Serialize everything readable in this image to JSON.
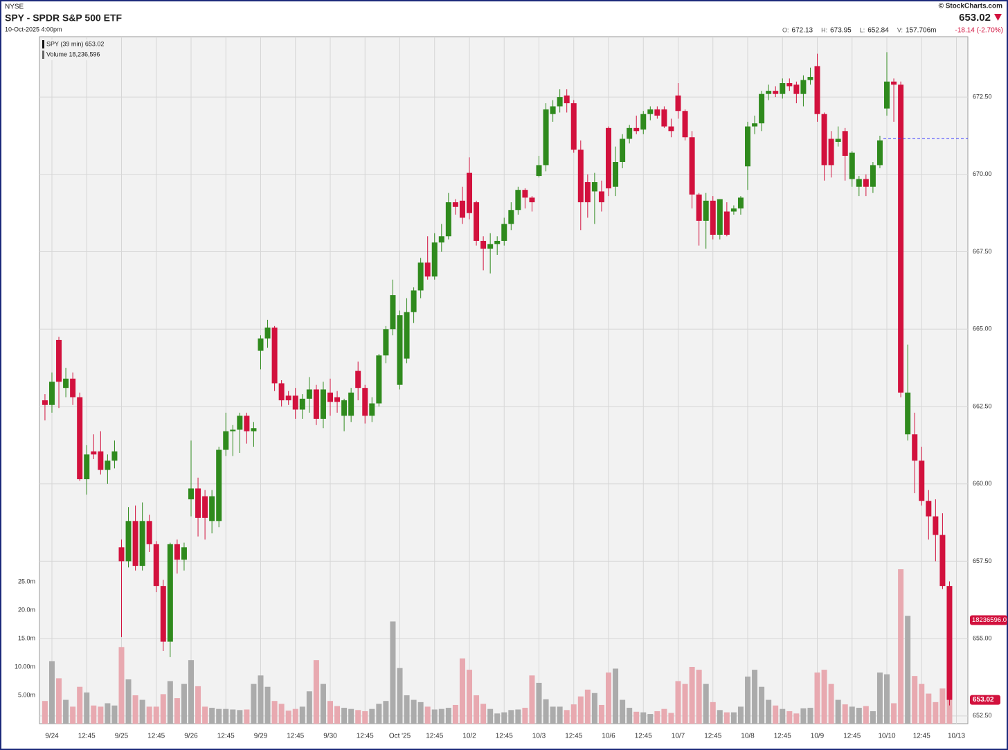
{
  "header": {
    "exchange": "NYSE",
    "title": "SPY - SPDR S&P 500 ETF",
    "datetime": "10-Oct-2025 4:00pm",
    "brand": "© StockCharts.com",
    "last": "653.02",
    "stats": [
      {
        "key": "O:",
        "value": "672.13"
      },
      {
        "key": "H:",
        "value": "673.95"
      },
      {
        "key": "L:",
        "value": "652.84"
      },
      {
        "key": "V:",
        "value": "157.706m"
      }
    ],
    "change": "-18.14 (-2.70%)"
  },
  "chart_data": {
    "type": "candlestick",
    "legend": [
      "SPY (39 min) 653.02",
      "Volume 18,236,596"
    ],
    "up_color": "#2f8a1d",
    "down_color": "#d2113d",
    "up_volume_color": "#ababab",
    "down_volume_color": "#e8a9b0",
    "prev_close": 671.16,
    "prev_close_color": "#3a3aff",
    "last_price_label": "653.02",
    "last_volume_label": "18236596.0",
    "xlim": [
      -0.79,
      132.64
    ],
    "xticks": [
      {
        "value": 1,
        "label": "9/24"
      },
      {
        "value": 6,
        "label": "12:45"
      },
      {
        "value": 11,
        "label": "9/25"
      },
      {
        "value": 16,
        "label": "12:45"
      },
      {
        "value": 21,
        "label": "9/26"
      },
      {
        "value": 26,
        "label": "12:45"
      },
      {
        "value": 31,
        "label": "9/29"
      },
      {
        "value": 36,
        "label": "12:45"
      },
      {
        "value": 41,
        "label": "9/30"
      },
      {
        "value": 46,
        "label": "12:45"
      },
      {
        "value": 51,
        "label": "Oct '25"
      },
      {
        "value": 56,
        "label": "12:45"
      },
      {
        "value": 61,
        "label": "10/2"
      },
      {
        "value": 66,
        "label": "12:45"
      },
      {
        "value": 71,
        "label": "10/3"
      },
      {
        "value": 76,
        "label": "12:45"
      },
      {
        "value": 81,
        "label": "10/6"
      },
      {
        "value": 86,
        "label": "12:45"
      },
      {
        "value": 91,
        "label": "10/7"
      },
      {
        "value": 96,
        "label": "12:45"
      },
      {
        "value": 101,
        "label": "10/8"
      },
      {
        "value": 106,
        "label": "12:45"
      },
      {
        "value": 111,
        "label": "10/9"
      },
      {
        "value": 116,
        "label": "12:45"
      },
      {
        "value": 121,
        "label": "10/10"
      },
      {
        "value": 126,
        "label": "12:45"
      },
      {
        "value": 131,
        "label": "10/13"
      }
    ],
    "ylim": [
      652.25,
      674.45
    ],
    "yticks": [
      {
        "value": 652.5,
        "label": "652.50"
      },
      {
        "value": 655,
        "label": "655.00"
      },
      {
        "value": 657.5,
        "label": "657.50"
      },
      {
        "value": 660,
        "label": "660.00"
      },
      {
        "value": 662.5,
        "label": "662.50"
      },
      {
        "value": 665,
        "label": "665.00"
      },
      {
        "value": 667.5,
        "label": "667.50"
      },
      {
        "value": 670,
        "label": "670.00"
      },
      {
        "value": 672.5,
        "label": "672.50"
      }
    ],
    "y2lim": [
      0,
      121
    ],
    "y2ticks": [
      {
        "value": 5,
        "label": "5.00m"
      },
      {
        "value": 10,
        "label": "10.00m"
      },
      {
        "value": 15,
        "label": "15.0m"
      },
      {
        "value": 20,
        "label": "20.0m"
      },
      {
        "value": 25,
        "label": "25.0m"
      }
    ],
    "open": [
      662.7,
      662.55,
      664.65,
      663.1,
      663.4,
      662.8,
      660.15,
      661.05,
      661.05,
      660.45,
      660.75,
      657.95,
      657.5,
      658.8,
      657.35,
      658.8,
      658.05,
      656.7,
      654.9,
      658.05,
      657.55,
      659.5,
      659.85,
      659.6,
      658.8,
      658.8,
      661.1,
      661.7,
      661.75,
      662.2,
      661.7,
      664.3,
      664.7,
      665.05,
      663.25,
      662.85,
      662.85,
      662.4,
      662.75,
      663.05,
      662.1,
      662.95,
      662.8,
      662.2,
      662.2,
      663.65,
      663.1,
      662.2,
      662.6,
      664.15,
      665.0,
      663.2,
      664.05,
      665.55,
      666.25,
      667.15,
      666.7,
      667.8,
      668.0,
      669.1,
      669.15,
      670.05,
      669.1,
      667.85,
      667.6,
      667.75,
      667.85,
      668.4,
      668.85,
      669.5,
      669.25,
      669.95,
      670.3,
      671.95,
      672.2,
      672.55,
      672.3,
      670.8,
      669.75,
      669.45,
      669.45,
      671.5,
      669.6,
      670.4,
      671.15,
      671.5,
      671.45,
      671.95,
      672.1,
      672.1,
      671.55,
      672.55,
      672.05,
      671.2,
      669.35,
      668.5,
      669.15,
      668.05,
      668.8,
      668.8,
      668.9,
      670.26,
      671.55,
      671.65,
      672.6,
      672.7,
      672.6,
      672.95,
      672.9,
      672.6,
      673.05,
      673.5,
      671.95,
      671.15,
      671.05,
      671.4,
      669.85,
      669.6,
      669.85,
      669.6,
      670.3,
      672.13,
      673.0,
      672.9,
      661.6,
      661.6,
      660.75,
      659.45,
      658.95,
      658.35,
      656.7
    ],
    "high": [
      662.9,
      663.6,
      664.75,
      663.75,
      663.6,
      662.95,
      661.25,
      661.6,
      661.7,
      660.95,
      661.4,
      658.2,
      659.25,
      659.3,
      659.4,
      659.0,
      658.15,
      656.9,
      658.1,
      658.2,
      658.1,
      661.4,
      660.2,
      659.8,
      659.8,
      661.2,
      662.3,
      661.9,
      662.3,
      662.3,
      662.0,
      664.8,
      665.3,
      665.1,
      663.35,
      663.0,
      663.1,
      662.9,
      663.45,
      663.2,
      663.3,
      663.4,
      663.0,
      662.75,
      663.1,
      663.95,
      663.2,
      662.8,
      664.2,
      665.1,
      666.6,
      665.6,
      666.0,
      666.35,
      667.3,
      668.0,
      668.1,
      668.4,
      669.4,
      669.2,
      669.6,
      670.55,
      669.15,
      668.0,
      668.1,
      668.0,
      668.6,
      669.1,
      669.6,
      669.55,
      669.3,
      670.6,
      672.3,
      672.4,
      672.75,
      672.75,
      672.4,
      671.1,
      670.0,
      670.05,
      669.8,
      671.55,
      670.9,
      671.3,
      671.6,
      671.9,
      672.05,
      672.2,
      672.2,
      672.2,
      671.8,
      672.95,
      672.1,
      671.4,
      669.4,
      669.4,
      669.3,
      669.2,
      669.1,
      669.0,
      669.3,
      671.7,
      671.9,
      672.7,
      672.9,
      672.85,
      673.1,
      673.1,
      673.0,
      673.2,
      673.45,
      673.9,
      672.0,
      671.4,
      671.55,
      671.5,
      670.75,
      669.95,
      670.0,
      670.4,
      671.25,
      673.95,
      673.1,
      673.0,
      664.5,
      662.3,
      661.2,
      659.8,
      659.5,
      659.05,
      656.85
    ],
    "low": [
      662.05,
      662.3,
      662.45,
      662.8,
      662.55,
      660.1,
      659.65,
      660.8,
      660.3,
      660.0,
      660.5,
      655.05,
      657.3,
      657.2,
      657.2,
      657.8,
      656.5,
      654.6,
      654.4,
      657.1,
      657.2,
      658.95,
      658.3,
      658.2,
      658.4,
      658.6,
      660.9,
      660.9,
      661.0,
      661.3,
      661.2,
      663.7,
      664.4,
      663.0,
      662.5,
      662.55,
      662.1,
      662.1,
      662.3,
      661.9,
      661.8,
      662.2,
      662.3,
      661.7,
      662.0,
      662.7,
      661.95,
      662.0,
      662.5,
      663.9,
      664.8,
      663.05,
      663.9,
      665.2,
      666.0,
      666.6,
      666.6,
      667.5,
      667.9,
      668.7,
      668.4,
      668.55,
      667.7,
      666.9,
      666.8,
      667.4,
      667.7,
      668.2,
      668.7,
      668.9,
      668.8,
      669.9,
      670.1,
      671.7,
      672.0,
      672.0,
      670.7,
      668.2,
      668.6,
      668.4,
      668.8,
      669.3,
      669.3,
      670.2,
      671.0,
      671.3,
      671.3,
      671.75,
      671.8,
      671.5,
      671.2,
      671.8,
      671.1,
      668.9,
      667.7,
      667.6,
      667.9,
      667.9,
      668.0,
      668.7,
      668.7,
      669.5,
      671.3,
      671.4,
      672.4,
      672.5,
      672.45,
      672.7,
      672.3,
      672.2,
      672.9,
      671.7,
      669.8,
      669.9,
      670.9,
      669.8,
      669.6,
      669.3,
      669.3,
      669.4,
      670.2,
      671.9,
      671.7,
      662.8,
      661.4,
      659.7,
      659.3,
      658.2,
      657.5,
      656.6,
      652.84
    ],
    "close": [
      662.55,
      663.3,
      663.3,
      663.4,
      662.8,
      660.15,
      660.95,
      660.95,
      660.45,
      660.75,
      661.05,
      657.5,
      658.8,
      657.35,
      658.8,
      658.05,
      656.7,
      654.9,
      658.05,
      657.55,
      657.95,
      659.85,
      658.9,
      658.9,
      659.6,
      661.1,
      661.7,
      661.75,
      662.2,
      661.7,
      661.8,
      664.7,
      665.05,
      663.25,
      662.7,
      662.7,
      662.4,
      662.75,
      663.05,
      662.1,
      663.05,
      662.65,
      662.65,
      662.7,
      662.95,
      663.1,
      662.2,
      662.6,
      664.15,
      665.0,
      666.1,
      665.45,
      665.55,
      666.25,
      667.15,
      666.7,
      667.8,
      668.0,
      669.1,
      668.95,
      668.6,
      668.75,
      667.85,
      667.6,
      667.75,
      667.85,
      668.4,
      668.85,
      669.5,
      669.25,
      669.1,
      670.3,
      672.1,
      672.2,
      672.5,
      672.3,
      670.8,
      669.1,
      669.1,
      669.75,
      669.1,
      669.55,
      670.4,
      671.15,
      671.5,
      671.4,
      671.95,
      672.1,
      671.9,
      671.55,
      671.4,
      672.05,
      671.2,
      669.35,
      668.5,
      669.15,
      668.05,
      669.2,
      668.05,
      668.9,
      669.25,
      671.55,
      671.65,
      672.6,
      672.7,
      672.6,
      672.95,
      672.85,
      672.6,
      673.05,
      673.15,
      671.95,
      670.3,
      670.3,
      671.15,
      670.6,
      670.7,
      669.85,
      669.6,
      670.3,
      671.1,
      673.0,
      672.9,
      662.95,
      662.95,
      660.75,
      659.45,
      658.95,
      658.35,
      656.7,
      653.02
    ],
    "volume": [
      4.0,
      11.0,
      8.0,
      4.2,
      3.0,
      6.5,
      5.5,
      3.2,
      3.0,
      3.6,
      3.2,
      13.5,
      7.8,
      5.0,
      4.2,
      3.0,
      3.0,
      5.2,
      7.5,
      4.5,
      7.0,
      11.2,
      6.6,
      3.0,
      2.8,
      2.6,
      2.6,
      2.5,
      2.4,
      2.5,
      7.0,
      8.5,
      6.5,
      4.0,
      3.5,
      2.3,
      2.6,
      3.0,
      5.7,
      11.2,
      7.0,
      4.0,
      3.1,
      2.8,
      2.6,
      2.4,
      2.2,
      2.6,
      3.5,
      4.0,
      18.0,
      9.8,
      5.0,
      4.2,
      3.8,
      3.0,
      2.5,
      2.6,
      2.8,
      3.3,
      11.5,
      9.5,
      5.0,
      3.5,
      2.6,
      1.8,
      2.0,
      2.4,
      2.5,
      2.8,
      8.5,
      7.2,
      4.3,
      3.0,
      3.0,
      2.4,
      3.4,
      4.8,
      6.0,
      5.4,
      3.3,
      9.0,
      9.7,
      4.2,
      2.8,
      2.1,
      2.0,
      1.7,
      2.2,
      2.6,
      1.9,
      7.5,
      7.0,
      10.0,
      9.5,
      7.0,
      3.8,
      2.4,
      2.0,
      2.0,
      3.0,
      8.3,
      9.5,
      6.5,
      4.2,
      3.2,
      2.6,
      2.2,
      1.8,
      2.7,
      2.8,
      9.0,
      9.5,
      7.0,
      4.2,
      3.4,
      3.0,
      2.8,
      3.1,
      2.2,
      9.0,
      8.7,
      3.6,
      27.2,
      19.0,
      8.4,
      7.0,
      5.3,
      3.8,
      6.2,
      18.236596
    ]
  }
}
